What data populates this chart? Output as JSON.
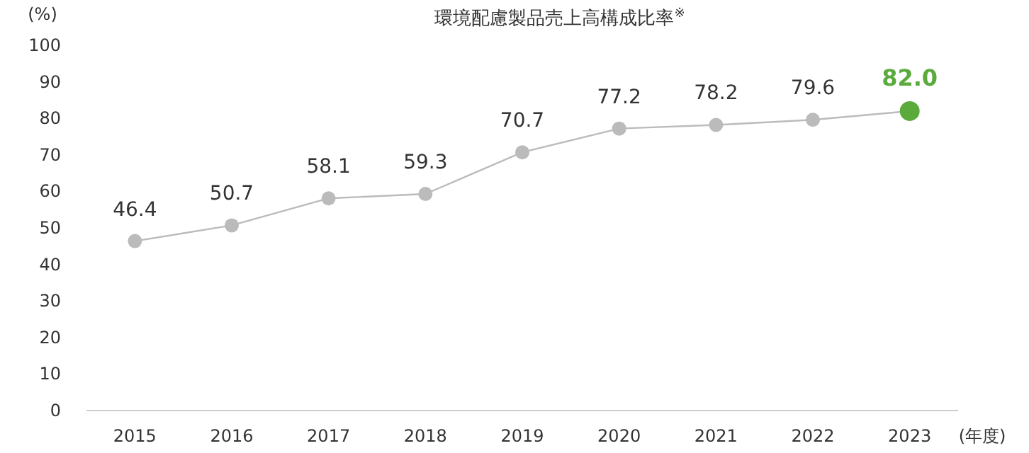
{
  "chart_data": {
    "type": "line",
    "title": "環境配慮製品売上高構成比率$^{※}$",
    "ylabel": "(%)",
    "xlabel": "(年度)",
    "categories": [
      "2015",
      "2016",
      "2017",
      "2018",
      "2019",
      "2020",
      "2021",
      "2022",
      "2023"
    ],
    "series": [
      {
        "color": "#bbbbbb",
        "values": [
          46.4,
          50.7,
          58.1,
          59.3,
          70.7,
          77.2,
          78.2,
          79.6,
          82.0
        ],
        "colors": [
          "#bbbbbb",
          "#bbbbbb",
          "#bbbbbb",
          "#bbbbbb",
          "#bbbbbb",
          "#bbbbbb",
          "#bbbbbb",
          "#bbbbbb",
          "#5aab3c"
        ],
        "value_labels": [
          "46.4",
          "50.7",
          "58.1",
          "59.3",
          "70.7",
          "77.2",
          "78.2",
          "79.6",
          "82.0"
        ]
      }
    ],
    "ylim": [
      0,
      100
    ],
    "yticks": [
      0,
      10,
      20,
      30,
      40,
      50,
      60,
      70,
      80,
      90,
      100
    ],
    "marker": "circle",
    "line_style": "solid",
    "grid": false
  }
}
